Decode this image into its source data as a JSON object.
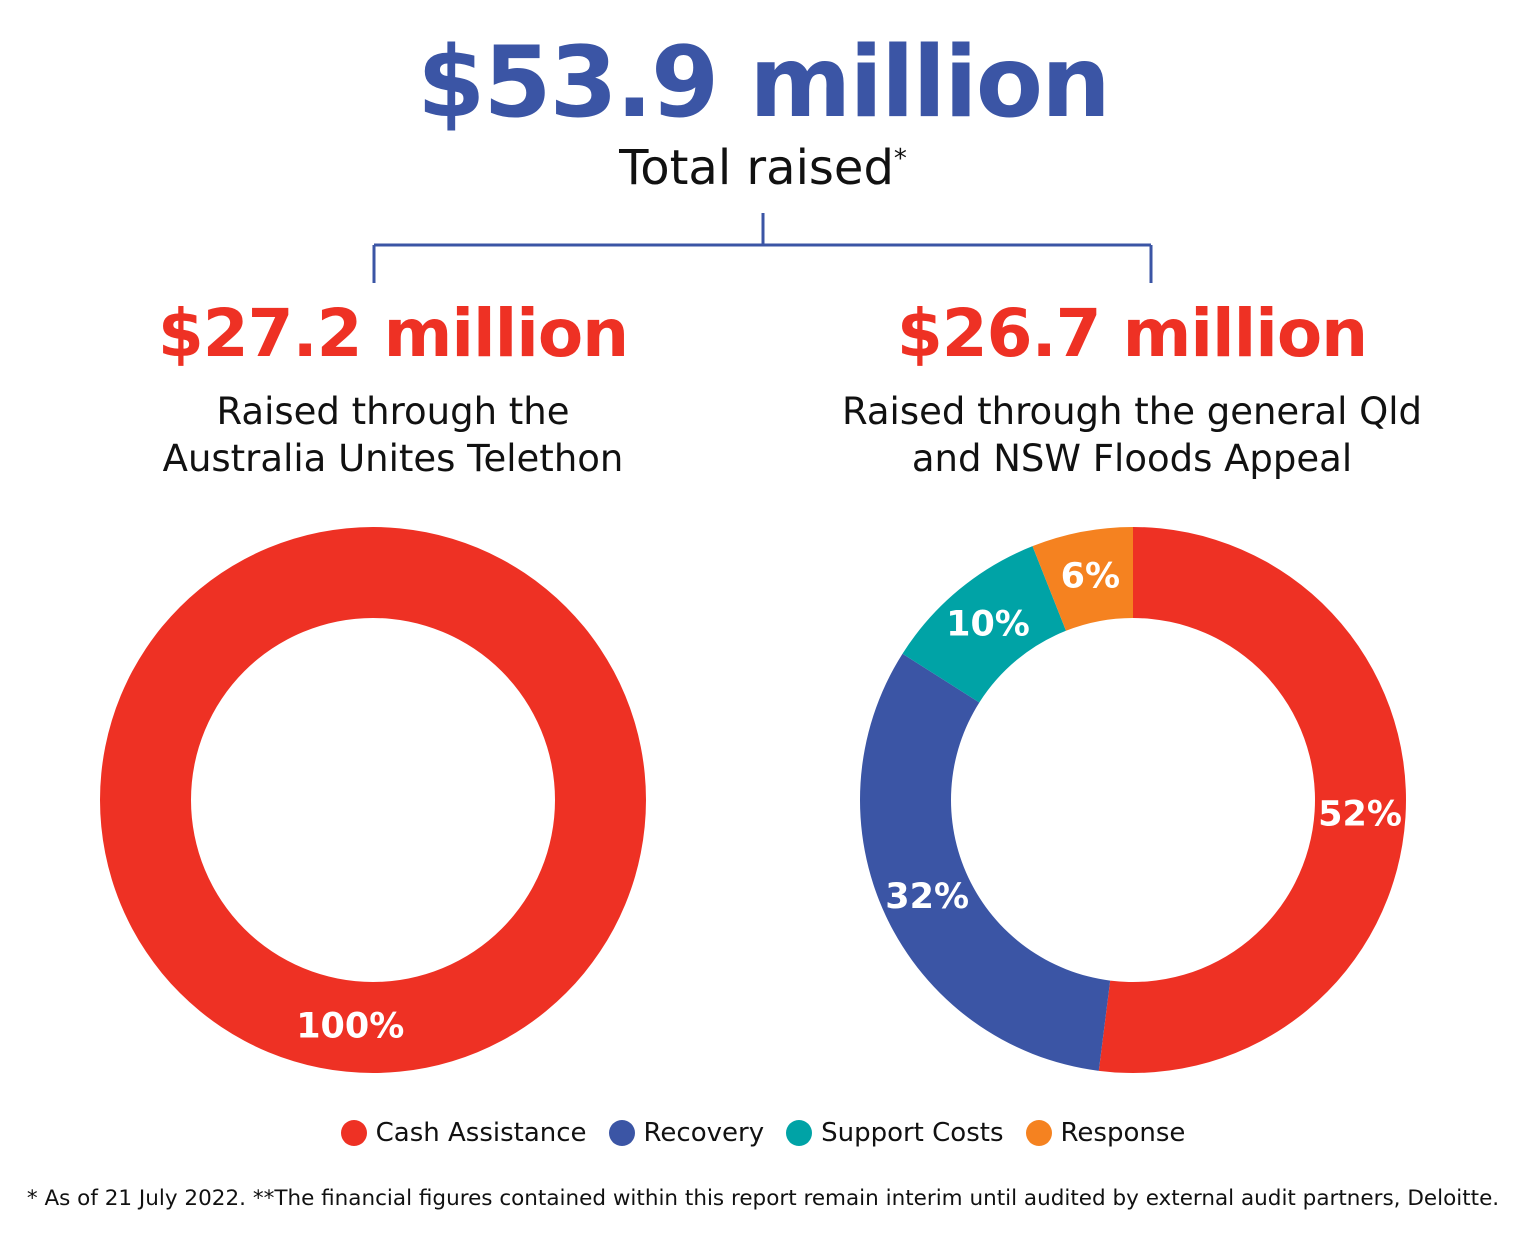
{
  "header": {
    "total_amount": "$53.9 million",
    "total_label": "Total raised",
    "total_mark": "*"
  },
  "chart_data": [
    {
      "type": "pie",
      "title": "$27.2 million",
      "subtitle": [
        "Raised through the",
        "Australia Unites Telethon"
      ],
      "slices": [
        {
          "name": "Cash Assistance",
          "value": 100,
          "label": "100%",
          "color": "#ee3124"
        }
      ]
    },
    {
      "type": "pie",
      "title": "$26.7 million",
      "subtitle": [
        "Raised through the general Qld",
        "and NSW Floods Appeal"
      ],
      "slices": [
        {
          "name": "Cash Assistance",
          "value": 52,
          "label": "52%",
          "color": "#ee3124"
        },
        {
          "name": "Recovery",
          "value": 32,
          "label": "32%",
          "color": "#3b55a5"
        },
        {
          "name": "Support Costs",
          "value": 10,
          "label": "10%",
          "color": "#00a3a6"
        },
        {
          "name": "Response",
          "value": 6,
          "label": "6%",
          "color": "#f58220"
        }
      ]
    }
  ],
  "legend": [
    {
      "label": "Cash Assistance",
      "color": "#ee3124"
    },
    {
      "label": "Recovery",
      "color": "#3b55a5"
    },
    {
      "label": "Support Costs",
      "color": "#00a3a6"
    },
    {
      "label": "Response",
      "color": "#f58220"
    }
  ],
  "footnote": "* As of 21 July 2022. **The financial figures contained within this report remain interim until audited by external audit partners, Deloitte."
}
